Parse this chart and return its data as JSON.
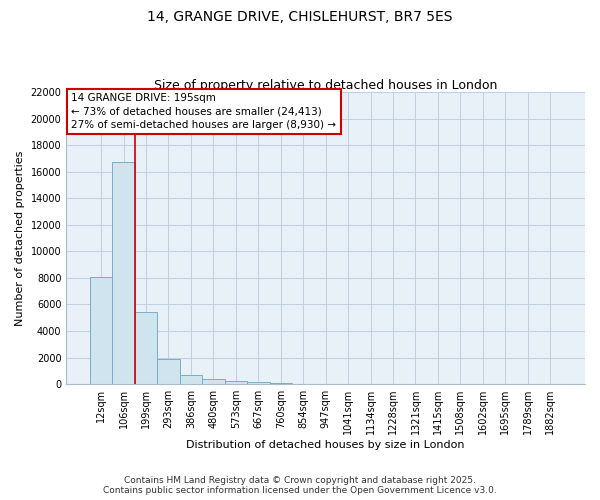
{
  "title_line1": "14, GRANGE DRIVE, CHISLEHURST, BR7 5ES",
  "title_line2": "Size of property relative to detached houses in London",
  "xlabel": "Distribution of detached houses by size in London",
  "ylabel": "Number of detached properties",
  "categories": [
    "12sqm",
    "106sqm",
    "199sqm",
    "293sqm",
    "386sqm",
    "480sqm",
    "573sqm",
    "667sqm",
    "760sqm",
    "854sqm",
    "947sqm",
    "1041sqm",
    "1134sqm",
    "1228sqm",
    "1321sqm",
    "1415sqm",
    "1508sqm",
    "1602sqm",
    "1695sqm",
    "1789sqm",
    "1882sqm"
  ],
  "values": [
    8100,
    16750,
    5450,
    1900,
    700,
    400,
    200,
    130,
    100,
    0,
    0,
    0,
    0,
    0,
    0,
    0,
    0,
    0,
    0,
    0,
    0
  ],
  "bar_color": "#d0e4f0",
  "bar_edge_color": "#7aacc8",
  "vline_color": "#cc0000",
  "annotation_text": "14 GRANGE DRIVE: 195sqm\n← 73% of detached houses are smaller (24,413)\n27% of semi-detached houses are larger (8,930) →",
  "annotation_box_color": "#cc0000",
  "ylim": [
    0,
    22000
  ],
  "yticks": [
    0,
    2000,
    4000,
    6000,
    8000,
    10000,
    12000,
    14000,
    16000,
    18000,
    20000,
    22000
  ],
  "grid_color": "#c0d0e0",
  "background_color": "#e8f0f8",
  "fig_background": "#ffffff",
  "footer_text": "Contains HM Land Registry data © Crown copyright and database right 2025.\nContains public sector information licensed under the Open Government Licence v3.0.",
  "title_fontsize": 10,
  "subtitle_fontsize": 9,
  "axis_label_fontsize": 8,
  "tick_fontsize": 7,
  "annotation_fontsize": 7.5,
  "footer_fontsize": 6.5
}
